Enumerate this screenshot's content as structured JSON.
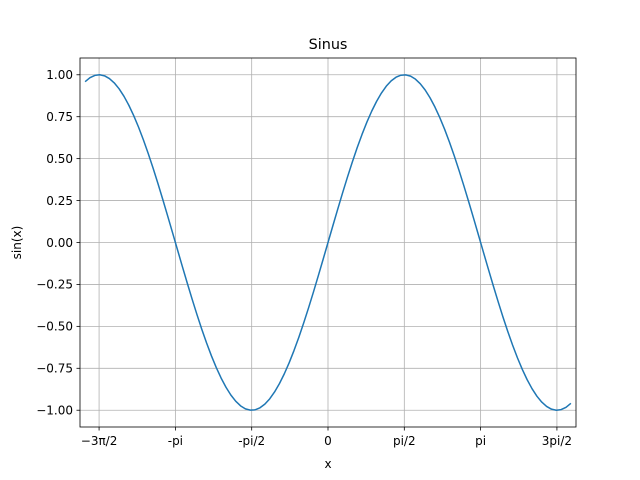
{
  "chart_data": {
    "type": "line",
    "title": "Sinus",
    "xlabel": "x",
    "ylabel": "sin(x)",
    "xlim": [
      -5.105088062083414,
      5.105088062083414
    ],
    "ylim": [
      -1.1,
      1.1
    ],
    "grid": true,
    "x_ticks": [
      {
        "value": -4.71238898038469,
        "label": "−3π/2"
      },
      {
        "value": -3.141592653589793,
        "label": "-pi"
      },
      {
        "value": -1.5707963267948966,
        "label": "-pi/2"
      },
      {
        "value": 0,
        "label": "0"
      },
      {
        "value": 1.5707963267948966,
        "label": "pi/2"
      },
      {
        "value": 3.141592653589793,
        "label": "pi"
      },
      {
        "value": 4.71238898038469,
        "label": "3pi/2"
      }
    ],
    "y_ticks": [
      {
        "value": 1.0,
        "label": "1.00"
      },
      {
        "value": 0.75,
        "label": "0.75"
      },
      {
        "value": 0.5,
        "label": "0.50"
      },
      {
        "value": 0.25,
        "label": "0.25"
      },
      {
        "value": 0.0,
        "label": "0.00"
      },
      {
        "value": -0.25,
        "label": "−0.25"
      },
      {
        "value": -0.5,
        "label": "−0.50"
      },
      {
        "value": -0.75,
        "label": "−0.75"
      },
      {
        "value": -1.0,
        "label": "−1.00"
      }
    ],
    "series": [
      {
        "function": "sin(x)",
        "color": "#1f77b4",
        "x": [
          -5.0,
          -4.9,
          -4.8,
          -4.7,
          -4.6,
          -4.5,
          -4.4,
          -4.3,
          -4.2,
          -4.1,
          -4.0,
          -3.9,
          -3.8,
          -3.7,
          -3.6,
          -3.5,
          -3.4,
          -3.3,
          -3.2,
          -3.1,
          -3.0,
          -2.9,
          -2.8,
          -2.7,
          -2.6,
          -2.5,
          -2.4,
          -2.3,
          -2.2,
          -2.1,
          -2.0,
          -1.9,
          -1.8,
          -1.7,
          -1.6,
          -1.5,
          -1.4,
          -1.3,
          -1.2,
          -1.1,
          -1.0,
          -0.9,
          -0.8,
          -0.7,
          -0.6,
          -0.5,
          -0.4,
          -0.3,
          -0.2,
          -0.1,
          0.0,
          0.1,
          0.2,
          0.3,
          0.4,
          0.5,
          0.6,
          0.7,
          0.8,
          0.9,
          1.0,
          1.1,
          1.2,
          1.3,
          1.4,
          1.5,
          1.6,
          1.7,
          1.8,
          1.9,
          2.0,
          2.1,
          2.2,
          2.3,
          2.4,
          2.5,
          2.6,
          2.7,
          2.8,
          2.9,
          3.0,
          3.1,
          3.2,
          3.3,
          3.4,
          3.5,
          3.6,
          3.7,
          3.8,
          3.9,
          4.0,
          4.1,
          4.2,
          4.3,
          4.4,
          4.5,
          4.6,
          4.7,
          4.8,
          4.9,
          5.0
        ],
        "y": [
          0.9589,
          0.9825,
          0.9962,
          0.9999,
          0.9937,
          0.9775,
          0.9516,
          0.9162,
          0.8716,
          0.8183,
          0.7568,
          0.6878,
          0.6119,
          0.5298,
          0.4425,
          0.3508,
          0.2555,
          0.1577,
          0.0584,
          -0.0416,
          -0.1411,
          -0.2392,
          -0.335,
          -0.4274,
          -0.5155,
          -0.5985,
          -0.6755,
          -0.7457,
          -0.8085,
          -0.8632,
          -0.9093,
          -0.9463,
          -0.9738,
          -0.9917,
          -0.9996,
          -0.9975,
          -0.9854,
          -0.9636,
          -0.932,
          -0.8912,
          -0.8415,
          -0.7833,
          -0.7174,
          -0.6442,
          -0.5646,
          -0.4794,
          -0.3894,
          -0.2955,
          -0.1987,
          -0.0998,
          0.0,
          0.0998,
          0.1987,
          0.2955,
          0.3894,
          0.4794,
          0.5646,
          0.6442,
          0.7174,
          0.7833,
          0.8415,
          0.8912,
          0.932,
          0.9636,
          0.9854,
          0.9975,
          0.9996,
          0.9917,
          0.9738,
          0.9463,
          0.9093,
          0.8632,
          0.8085,
          0.7457,
          0.6755,
          0.5985,
          0.5155,
          0.4274,
          0.335,
          0.2392,
          0.1411,
          0.0416,
          -0.0584,
          -0.1577,
          -0.2555,
          -0.3508,
          -0.4425,
          -0.5298,
          -0.6119,
          -0.6878,
          -0.7568,
          -0.8183,
          -0.8716,
          -0.9162,
          -0.9516,
          -0.9775,
          -0.9937,
          -0.9999,
          -0.9962,
          -0.9825,
          -0.9589
        ]
      }
    ]
  }
}
